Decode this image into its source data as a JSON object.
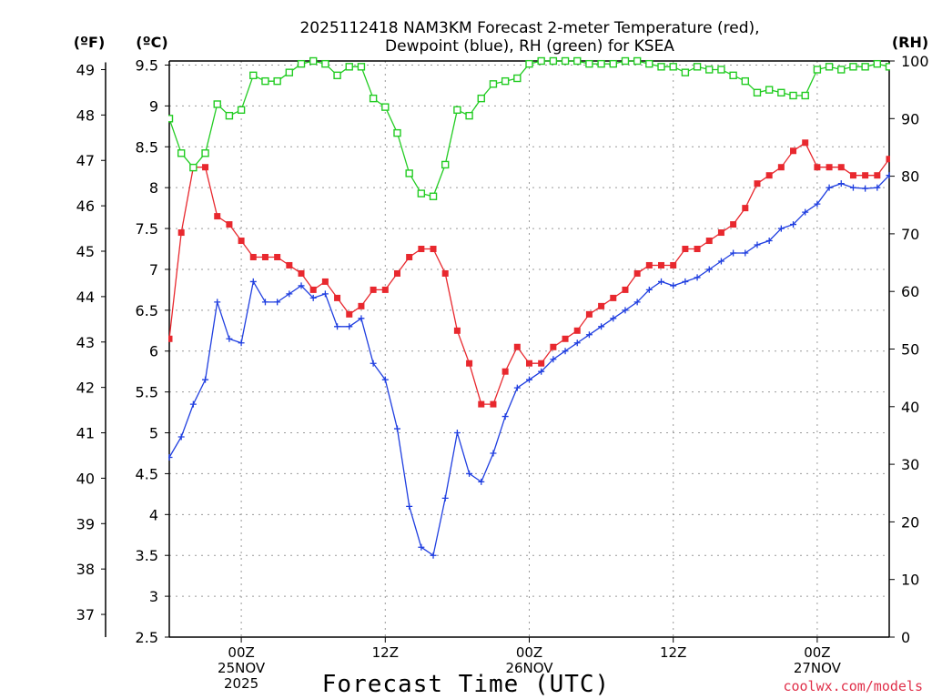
{
  "chart_data": {
    "type": "line",
    "title_line1": "2025112418 NAM3KM Forecast 2-meter Temperature (red),",
    "title_line2": "Dewpoint (blue), RH (green) for KSEA",
    "xlabel": "Forecast Time (UTC)",
    "credit": "coolwx.com/models",
    "units": {
      "fahrenheit": "(ºF)",
      "celsius": "(ºC)",
      "rh": "(RH)"
    },
    "grid": true,
    "x_range_hours": [
      0,
      60
    ],
    "celsius_axis": {
      "min": 2.5,
      "max": 9.55,
      "ticks": [
        "9.5",
        "9",
        "8.5",
        "8",
        "7.5",
        "7",
        "6.5",
        "6",
        "5.5",
        "5",
        "4.5",
        "4",
        "3.5",
        "3",
        "2.5"
      ]
    },
    "fahrenheit_axis": {
      "ticks": [
        "49",
        "48",
        "47",
        "46",
        "45",
        "44",
        "43",
        "42",
        "41",
        "40",
        "39",
        "38",
        "37"
      ]
    },
    "rh_axis": {
      "min": 0,
      "max": 100,
      "ticks": [
        "100",
        "90",
        "80",
        "70",
        "60",
        "50",
        "40",
        "30",
        "20",
        "10",
        "0"
      ]
    },
    "x_ticks": [
      {
        "hour": 6,
        "labels": [
          "00Z",
          "25NOV",
          "2025"
        ]
      },
      {
        "hour": 18,
        "labels": [
          "12Z"
        ]
      },
      {
        "hour": 30,
        "labels": [
          "00Z",
          "26NOV"
        ]
      },
      {
        "hour": 42,
        "labels": [
          "12Z"
        ]
      },
      {
        "hour": 54,
        "labels": [
          "00Z",
          "27NOV"
        ]
      }
    ],
    "series": [
      {
        "name": "Temperature (°C)",
        "color": "#e8282e",
        "marker": "filled-square",
        "axis": "celsius",
        "values": [
          6.15,
          7.45,
          8.25,
          8.25,
          7.65,
          7.55,
          7.35,
          7.15,
          7.15,
          7.15,
          7.05,
          6.95,
          6.75,
          6.85,
          6.65,
          6.45,
          6.55,
          6.75,
          6.75,
          6.95,
          7.15,
          7.25,
          7.25,
          6.95,
          6.25,
          5.85,
          5.35,
          5.35,
          5.75,
          6.05,
          5.85,
          5.85,
          6.05,
          6.15,
          6.25,
          6.45,
          6.55,
          6.65,
          6.75,
          6.95,
          7.05,
          7.05,
          7.05,
          7.25,
          7.25,
          7.35,
          7.45,
          7.55,
          7.75,
          8.05,
          8.15,
          8.25,
          8.45,
          8.55,
          8.25,
          8.25,
          8.25,
          8.15,
          8.15,
          8.15,
          8.35
        ]
      },
      {
        "name": "Dewpoint (°C)",
        "color": "#1f3ee0",
        "marker": "plus",
        "axis": "celsius",
        "values": [
          4.7,
          4.95,
          5.35,
          5.65,
          6.6,
          6.15,
          6.1,
          6.85,
          6.6,
          6.6,
          6.7,
          6.8,
          6.65,
          6.7,
          6.3,
          6.3,
          6.4,
          5.85,
          5.65,
          5.05,
          4.1,
          3.6,
          3.5,
          4.2,
          5.0,
          4.5,
          4.4,
          4.75,
          5.2,
          5.55,
          5.65,
          5.75,
          5.9,
          6.0,
          6.1,
          6.2,
          6.3,
          6.4,
          6.5,
          6.6,
          6.75,
          6.85,
          6.8,
          6.85,
          6.9,
          7.0,
          7.1,
          7.2,
          7.2,
          7.3,
          7.35,
          7.5,
          7.55,
          7.7,
          7.8,
          8.0,
          8.05,
          8.0,
          7.99,
          8.0,
          8.15
        ]
      },
      {
        "name": "RH (%)",
        "color": "#22cc22",
        "marker": "open-square",
        "axis": "rh",
        "values": [
          90,
          84,
          81.5,
          84,
          92.5,
          90.5,
          91.5,
          97.5,
          96.5,
          96.5,
          98,
          99.5,
          100,
          99.5,
          97.5,
          99,
          99,
          93.5,
          92,
          87.5,
          80.5,
          77,
          76.5,
          82,
          91.5,
          90.5,
          93.5,
          96,
          96.5,
          97,
          99.5,
          100,
          100,
          100,
          100,
          99.5,
          99.5,
          99.5,
          100,
          100,
          99.5,
          99,
          99,
          98,
          99,
          98.5,
          98.5,
          97.5,
          96.5,
          94.5,
          95,
          94.5,
          94,
          94,
          98.5,
          99,
          98.5,
          99,
          99,
          99.5,
          99
        ]
      }
    ]
  }
}
